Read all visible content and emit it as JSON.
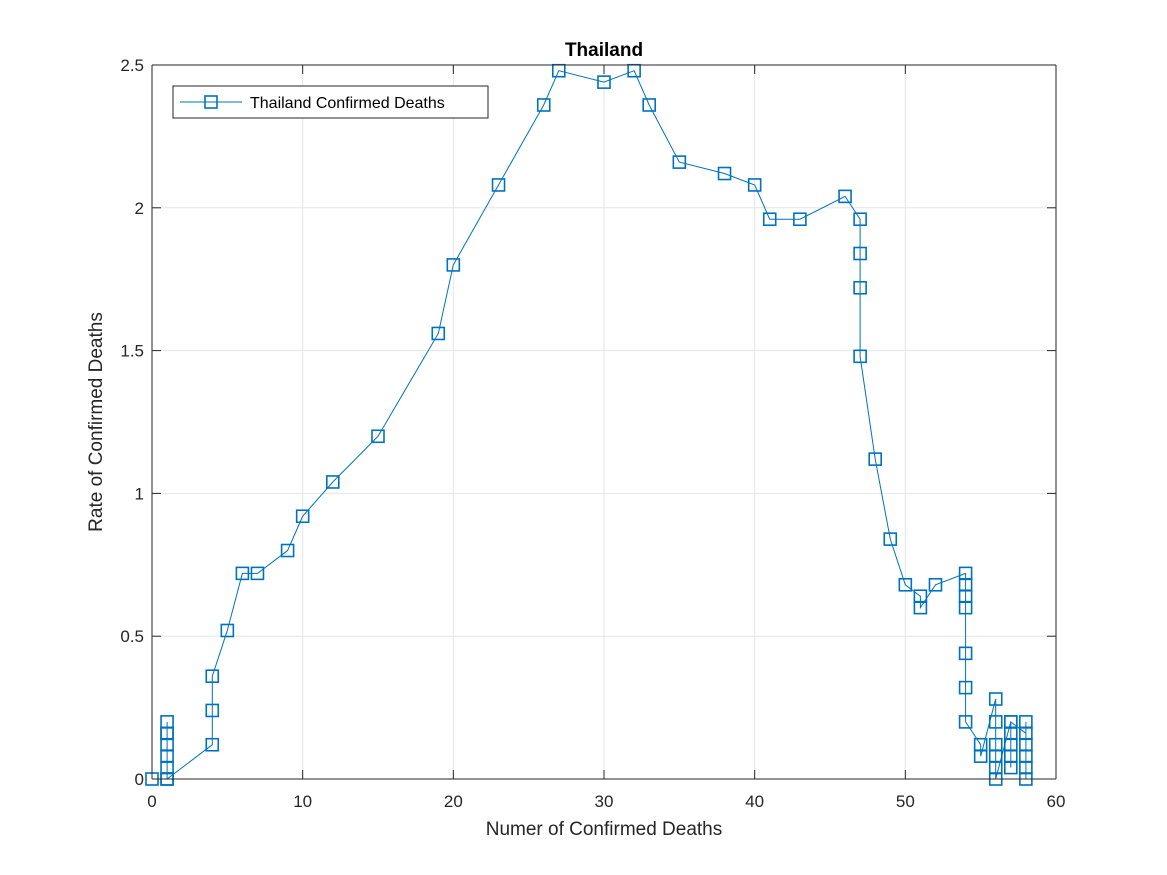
{
  "chart_data": {
    "type": "line",
    "title": "Thailand",
    "xlabel": "Numer of Confirmed Deaths",
    "ylabel": "Rate of Confirmed Deaths",
    "xlim": [
      0,
      60
    ],
    "ylim": [
      0,
      2.5
    ],
    "xticks": [
      0,
      10,
      20,
      30,
      40,
      50,
      60
    ],
    "yticks": [
      0,
      0.5,
      1,
      1.5,
      2,
      2.5
    ],
    "xtick_labels": [
      "0",
      "10",
      "20",
      "30",
      "40",
      "50",
      "60"
    ],
    "ytick_labels": [
      "0",
      "0.5",
      "1",
      "1.5",
      "2",
      "2.5"
    ],
    "grid": true,
    "legend_position": "top-left",
    "series": [
      {
        "name": "Thailand Confirmed Deaths",
        "color": "#0072bd",
        "marker": "square",
        "x": [
          0,
          1,
          1,
          1,
          1,
          1,
          1,
          1,
          1,
          4,
          4,
          4,
          5,
          6,
          7,
          9,
          10,
          12,
          15,
          19,
          20,
          23,
          26,
          27,
          30,
          32,
          33,
          35,
          38,
          40,
          41,
          43,
          46,
          47,
          47,
          47,
          47,
          48,
          49,
          50,
          51,
          51,
          52,
          54,
          54,
          54,
          54,
          54,
          54,
          54,
          55,
          55,
          56,
          56,
          56,
          56,
          56,
          56,
          57,
          57,
          57,
          57,
          57,
          57,
          58,
          58,
          58,
          58,
          58,
          58
        ],
        "y": [
          0,
          0,
          0.04,
          0.08,
          0.12,
          0.16,
          0.2,
          0.16,
          0,
          0.12,
          0.24,
          0.36,
          0.52,
          0.72,
          0.72,
          0.8,
          0.92,
          1.04,
          1.2,
          1.56,
          1.8,
          2.08,
          2.36,
          2.48,
          2.44,
          2.48,
          2.36,
          2.16,
          2.12,
          2.08,
          1.96,
          1.96,
          2.04,
          1.96,
          1.84,
          1.72,
          1.48,
          1.12,
          0.84,
          0.68,
          0.64,
          0.6,
          0.68,
          0.72,
          0.68,
          0.64,
          0.6,
          0.44,
          0.32,
          0.2,
          0.12,
          0.08,
          0.28,
          0.2,
          0.12,
          0.08,
          0.04,
          0,
          0.2,
          0.16,
          0.12,
          0.08,
          0.04,
          0.2,
          0.16,
          0.12,
          0.08,
          0.04,
          0,
          0.2
        ]
      }
    ]
  }
}
